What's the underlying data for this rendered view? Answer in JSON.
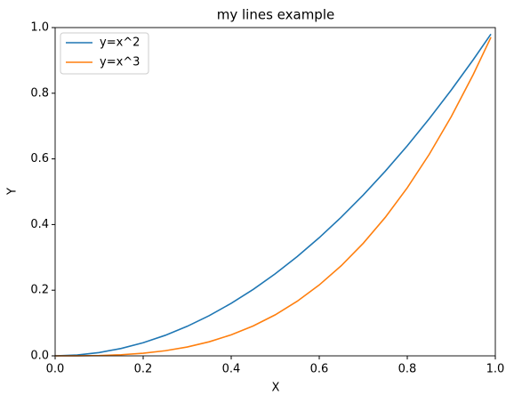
{
  "chart_data": {
    "type": "line",
    "title": "my lines example",
    "x_label": "X",
    "y_label": "Y",
    "x": [
      0,
      0.05,
      0.1,
      0.15,
      0.2,
      0.25,
      0.3,
      0.35,
      0.4,
      0.45,
      0.5,
      0.55,
      0.6,
      0.65,
      0.7,
      0.75,
      0.8,
      0.85,
      0.9,
      0.95,
      0.99
    ],
    "series": [
      {
        "name": "y=x^2",
        "color": "#1f77b4",
        "values": [
          0,
          0.0025,
          0.01,
          0.0225,
          0.04,
          0.0625,
          0.09,
          0.1225,
          0.16,
          0.2025,
          0.25,
          0.3025,
          0.36,
          0.4225,
          0.49,
          0.5625,
          0.64,
          0.7225,
          0.81,
          0.9025,
          0.9801
        ]
      },
      {
        "name": "y=x^3",
        "color": "#ff7f0e",
        "values": [
          0,
          0.000125,
          0.001,
          0.003375,
          0.008,
          0.015625,
          0.027,
          0.042875,
          0.064,
          0.091125,
          0.125,
          0.166375,
          0.216,
          0.274625,
          0.343,
          0.421875,
          0.512,
          0.614125,
          0.729,
          0.857375,
          0.970299
        ]
      }
    ],
    "xlim": [
      0,
      1
    ],
    "ylim": [
      0,
      1
    ],
    "xticks": [
      {
        "value": 0,
        "label": "0.0"
      },
      {
        "value": 0.2,
        "label": "0.2"
      },
      {
        "value": 0.4,
        "label": "0.4"
      },
      {
        "value": 0.6,
        "label": "0.6"
      },
      {
        "value": 0.8,
        "label": "0.8"
      },
      {
        "value": 1,
        "label": "1.0"
      }
    ],
    "yticks": [
      {
        "value": 0,
        "label": "0.0"
      },
      {
        "value": 0.2,
        "label": "0.2"
      },
      {
        "value": 0.4,
        "label": "0.4"
      },
      {
        "value": 0.6,
        "label": "0.6"
      },
      {
        "value": 0.8,
        "label": "0.8"
      },
      {
        "value": 1,
        "label": "1.0"
      }
    ],
    "grid": false,
    "legend": "upper-left"
  }
}
